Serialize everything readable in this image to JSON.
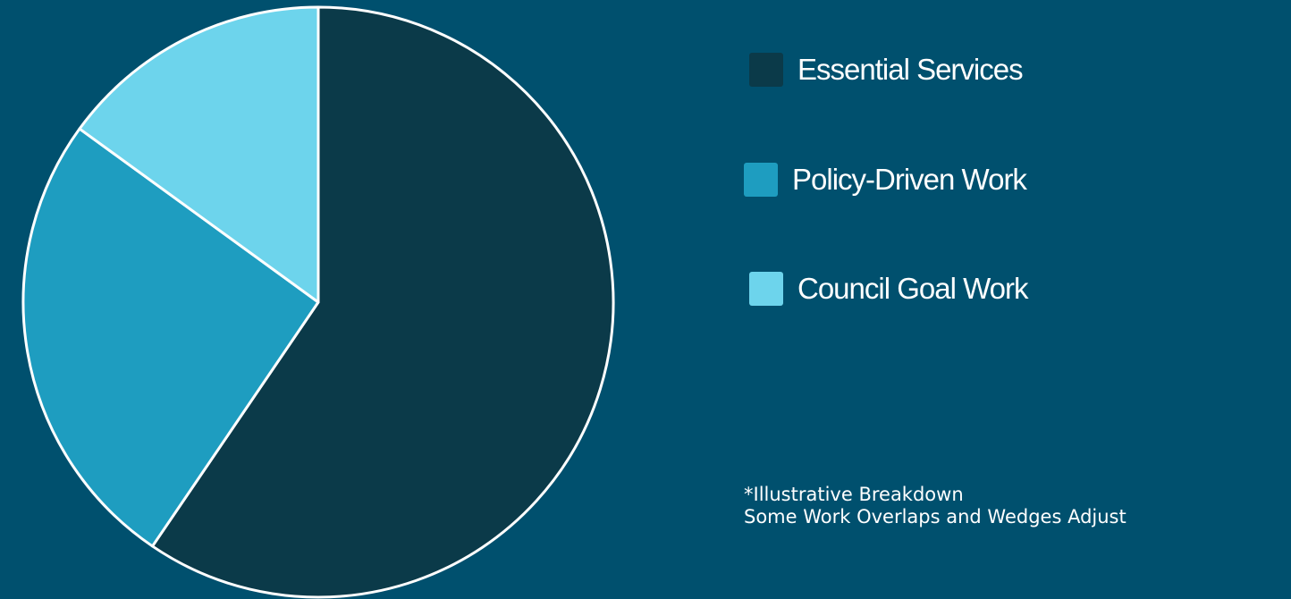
{
  "chart_data": {
    "type": "pie",
    "title": "",
    "series": [
      {
        "name": "Essential Services",
        "value": 59.5,
        "color": "#0B3A49"
      },
      {
        "name": "Policy-Driven Work",
        "value": 25.5,
        "color": "#1E9DC0"
      },
      {
        "name": "Council Goal Work",
        "value": 15,
        "color": "#6DD4EC"
      }
    ],
    "start_angle_deg": 0,
    "direction": "clockwise",
    "slice_border_color": "#FFFFFF",
    "legend_position": "right",
    "notes": [
      "*Illustrative Breakdown",
      "Some Work Overlaps and Wedges Adjust"
    ]
  },
  "background_color": "#00506E"
}
